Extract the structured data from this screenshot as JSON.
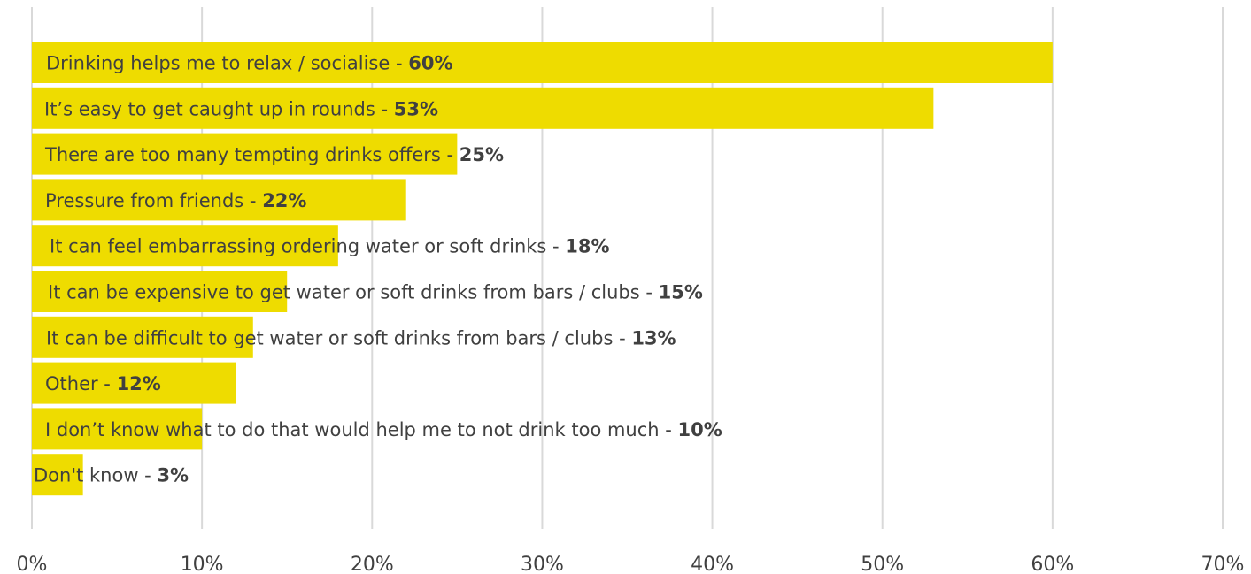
{
  "chart_data": {
    "type": "bar",
    "orientation": "horizontal",
    "title": "",
    "xlabel": "",
    "ylabel": "",
    "xlim": [
      0,
      70
    ],
    "x_ticks": [
      "0%",
      "10%",
      "20%",
      "30%",
      "40%",
      "50%",
      "60%",
      "70%"
    ],
    "grid": true,
    "bar_color": "#eedc00",
    "categories": [
      "Drinking helps me to relax / socialise",
      "It’s easy to get caught up in rounds",
      "There are too many tempting drinks offers",
      "Pressure from friends",
      "It can feel embarrassing ordering water or soft drinks",
      "It can be expensive to get water or soft drinks from bars / clubs",
      "It can be difficult to get water or soft drinks from bars / clubs ",
      "Other",
      "I don’t know what to do that would help me to not drink too much",
      "Don't know"
    ],
    "values": [
      60,
      53,
      25,
      22,
      18,
      15,
      13,
      12,
      10,
      3
    ],
    "value_labels": [
      "60%",
      "53%",
      "25%",
      "22%",
      "18%",
      "15%",
      "13%",
      "12%",
      "10%",
      "3%"
    ]
  }
}
